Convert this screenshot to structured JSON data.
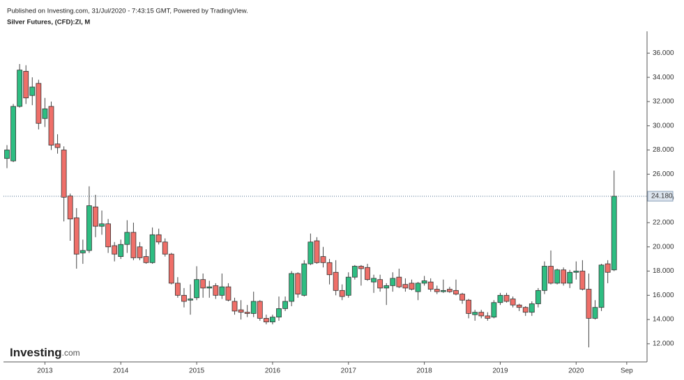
{
  "published": "Published on Investing.com, 31/Jul/2020 - 7:43:15 GMT, Powered by TradingView.",
  "logo": {
    "brand": "Investing",
    "suffix": ".com"
  },
  "chart_data": {
    "type": "candlestick",
    "title": "Silver Futures, (CFD):ZI, M",
    "categories": [
      null,
      null,
      null,
      null,
      null,
      null,
      "2013",
      null,
      null,
      null,
      null,
      null,
      null,
      null,
      null,
      null,
      null,
      null,
      "2014",
      null,
      null,
      null,
      null,
      null,
      null,
      null,
      null,
      null,
      null,
      null,
      "2015",
      null,
      null,
      null,
      null,
      null,
      null,
      null,
      null,
      null,
      null,
      null,
      "2016",
      null,
      null,
      null,
      null,
      null,
      null,
      null,
      null,
      null,
      null,
      null,
      "2017",
      null,
      null,
      null,
      null,
      null,
      null,
      null,
      null,
      null,
      null,
      null,
      "2018",
      null,
      null,
      null,
      null,
      null,
      null,
      null,
      null,
      null,
      null,
      null,
      "2019",
      null,
      null,
      null,
      null,
      null,
      null,
      null,
      null,
      null,
      null,
      null,
      "2020",
      null,
      null,
      null,
      null,
      null,
      null,
      null,
      "Sep"
    ],
    "open": [
      27.3,
      27.1,
      31.6,
      34.5,
      32.5,
      33.5,
      30.6,
      31.6,
      28.5,
      28.0,
      24.2,
      22.4,
      19.5,
      19.7,
      23.3,
      21.7,
      21.9,
      20.1,
      19.2,
      20.2,
      21.2,
      20.0,
      19.2,
      18.7,
      21.0,
      20.4,
      19.4,
      17.0,
      16.0,
      15.6,
      15.8,
      17.3,
      16.6,
      16.8,
      16.0,
      16.7,
      15.5,
      14.8,
      14.6,
      14.5,
      15.5,
      14.1,
      13.8,
      14.2,
      14.9,
      15.5,
      17.8,
      16.0,
      18.6,
      20.5,
      19.2,
      18.7,
      17.9,
      16.4,
      16.0,
      17.5,
      18.4,
      18.3,
      17.1,
      17.3,
      16.6,
      16.8,
      17.5,
      16.9,
      17.0,
      16.3,
      17.0,
      17.1,
      16.5,
      16.3,
      16.5,
      16.4,
      16.1,
      15.6,
      14.4,
      14.6,
      14.3,
      14.2,
      15.4,
      16.0,
      15.7,
      15.2,
      15.0,
      14.6,
      15.3,
      16.4,
      18.4,
      17.0,
      18.1,
      17.0,
      17.9,
      18.0,
      16.5,
      14.1,
      15.0,
      18.6,
      18.1,
      null,
      null
    ],
    "high": [
      28.4,
      31.8,
      35.1,
      35.0,
      34.0,
      33.8,
      32.3,
      32.0,
      29.3,
      28.3,
      24.4,
      23.2,
      20.6,
      25.0,
      24.3,
      23.0,
      22.3,
      20.4,
      20.6,
      22.2,
      22.0,
      20.4,
      19.8,
      21.6,
      21.5,
      20.7,
      19.5,
      17.5,
      16.6,
      16.9,
      18.4,
      17.8,
      17.2,
      17.0,
      17.8,
      17.0,
      15.8,
      15.6,
      15.2,
      16.3,
      15.6,
      14.4,
      14.4,
      15.9,
      15.9,
      18.0,
      17.9,
      18.9,
      21.1,
      20.8,
      20.0,
      19.0,
      18.9,
      16.9,
      17.9,
      18.5,
      18.5,
      18.6,
      17.7,
      17.7,
      17.0,
      17.9,
      18.2,
      17.4,
      17.3,
      17.1,
      17.6,
      17.4,
      16.8,
      17.3,
      16.7,
      17.3,
      16.2,
      15.7,
      14.8,
      14.8,
      14.6,
      15.6,
      16.2,
      16.2,
      15.9,
      15.3,
      15.1,
      15.5,
      16.6,
      18.8,
      19.7,
      18.2,
      18.3,
      18.1,
      18.8,
      18.9,
      17.8,
      15.6,
      18.6,
      18.9,
      26.3,
      null,
      null
    ],
    "low": [
      26.5,
      27.0,
      31.5,
      31.8,
      31.7,
      29.7,
      29.9,
      28.0,
      27.7,
      22.1,
      20.5,
      18.2,
      18.6,
      19.5,
      20.8,
      21.0,
      19.5,
      18.8,
      19.0,
      19.5,
      18.9,
      18.9,
      18.6,
      18.6,
      20.2,
      19.2,
      16.9,
      15.8,
      15.0,
      14.4,
      15.6,
      15.8,
      15.8,
      15.7,
      15.7,
      15.5,
      14.4,
      14.0,
      14.2,
      14.2,
      13.9,
      13.6,
      13.6,
      13.9,
      14.7,
      15.1,
      15.8,
      15.9,
      18.5,
      18.6,
      18.3,
      16.9,
      16.0,
      15.6,
      15.8,
      17.3,
      16.8,
      17.2,
      16.2,
      16.3,
      15.2,
      16.3,
      16.6,
      16.3,
      16.4,
      15.6,
      16.8,
      16.3,
      16.1,
      16.2,
      16.2,
      16.0,
      15.3,
      14.1,
      13.9,
      14.1,
      13.9,
      14.1,
      15.2,
      15.4,
      15.0,
      14.7,
      14.3,
      14.3,
      15.0,
      16.1,
      16.9,
      16.9,
      16.8,
      16.6,
      17.3,
      16.4,
      11.7,
      14.0,
      14.7,
      17.0,
      18.0,
      null,
      null
    ],
    "close": [
      28.0,
      31.6,
      34.6,
      32.3,
      33.2,
      30.2,
      31.4,
      28.4,
      28.2,
      24.1,
      22.3,
      19.4,
      19.7,
      23.4,
      21.7,
      21.9,
      20.0,
      19.4,
      20.2,
      21.2,
      19.1,
      19.1,
      18.7,
      21.0,
      20.4,
      19.4,
      17.0,
      16.0,
      15.5,
      15.7,
      17.3,
      16.6,
      16.7,
      16.0,
      16.7,
      15.6,
      14.7,
      14.6,
      14.5,
      15.5,
      14.1,
      13.8,
      14.2,
      14.9,
      15.5,
      17.8,
      16.1,
      18.6,
      20.4,
      18.7,
      18.7,
      17.7,
      16.4,
      15.9,
      17.5,
      18.4,
      18.2,
      17.3,
      17.4,
      16.6,
      16.8,
      17.4,
      16.7,
      16.6,
      16.5,
      17.0,
      17.2,
      16.5,
      16.3,
      16.4,
      16.3,
      16.1,
      15.6,
      14.5,
      14.6,
      14.3,
      14.1,
      15.4,
      16.0,
      15.5,
      15.2,
      15.0,
      14.6,
      15.3,
      16.4,
      18.4,
      17.0,
      18.1,
      17.0,
      17.9,
      18.0,
      16.5,
      14.1,
      15.0,
      18.5,
      17.9,
      24.18,
      null,
      null
    ],
    "up_color": "#2ebd82",
    "down_color": "#ef6f69",
    "last_price": {
      "value": 24.18,
      "label": "24.180"
    },
    "ylim": [
      10.5,
      37.8
    ],
    "yticks": [
      {
        "value": 12,
        "label": "12.000"
      },
      {
        "value": 14,
        "label": "14.000"
      },
      {
        "value": 16,
        "label": "16.000"
      },
      {
        "value": 18,
        "label": "18.000"
      },
      {
        "value": 20,
        "label": "20.000"
      },
      {
        "value": 22,
        "label": "22.000"
      },
      {
        "value": 24,
        "label": "24.000"
      },
      {
        "value": 26,
        "label": "26.000"
      },
      {
        "value": 28,
        "label": "28.000"
      },
      {
        "value": 30,
        "label": "30.000"
      },
      {
        "value": 32,
        "label": "32.000"
      },
      {
        "value": 34,
        "label": "34.000"
      },
      {
        "value": 36,
        "label": "36.000"
      }
    ]
  }
}
